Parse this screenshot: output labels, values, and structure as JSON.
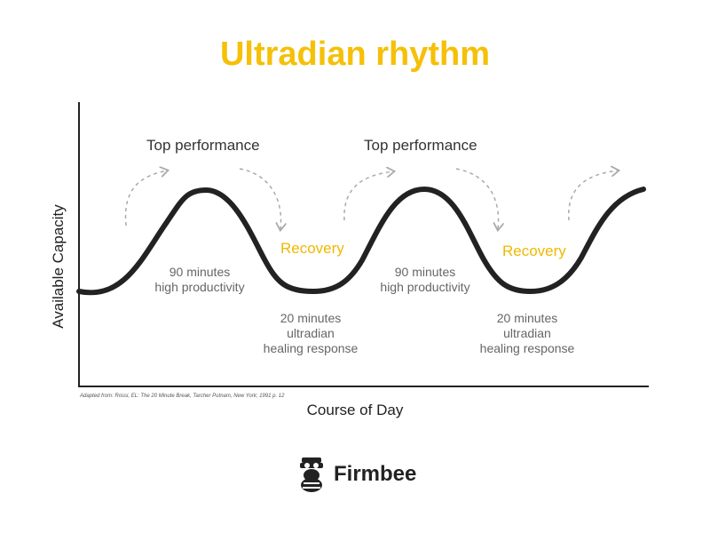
{
  "title": "Ultradian rhythm",
  "axes": {
    "ylabel": "Available Capacity",
    "xlabel": "Course of Day"
  },
  "labels": {
    "top_performance": [
      "Top performance",
      "Top performance"
    ],
    "recovery": [
      "Recovery",
      "Recovery"
    ],
    "productivity": [
      {
        "line1": "90 minutes",
        "line2": "high productivity"
      },
      {
        "line1": "90 minutes",
        "line2": "high productivity"
      }
    ],
    "healing": [
      {
        "line1": "20 minutes",
        "line2": "ultradian",
        "line3": "healing response"
      },
      {
        "line1": "20 minutes",
        "line2": "ultradian",
        "line3": "healing response"
      }
    ]
  },
  "source": "Adapted from: Rossi, EL: The 20 Minute Break, Tarcher Putnam, New York; 1991 p. 12",
  "brand": {
    "name": "Firmbee",
    "icon": "bee-mascot-icon"
  },
  "colors": {
    "accent": "#f5c007",
    "curve": "#222222",
    "arrow": "#aaaaaa"
  }
}
